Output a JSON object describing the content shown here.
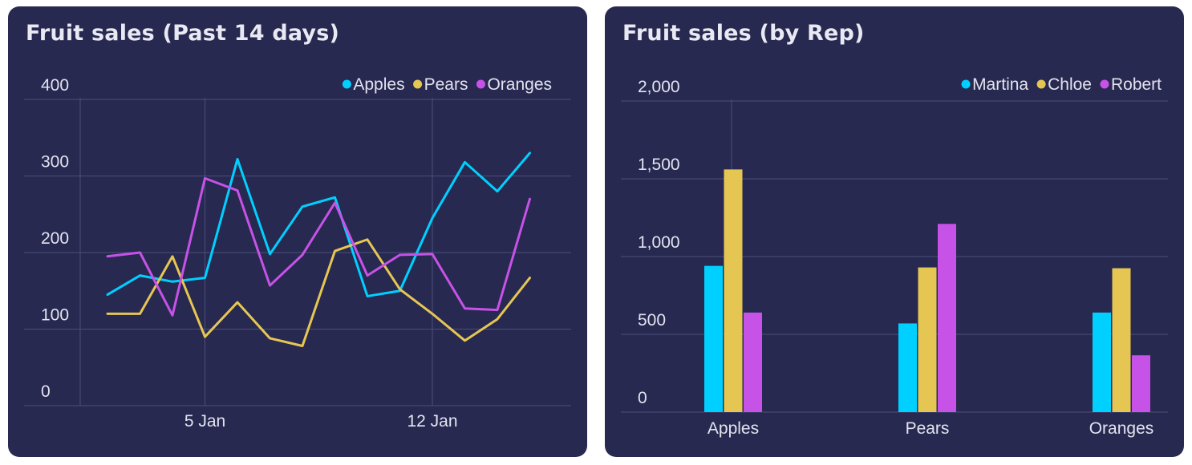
{
  "charts": [
    {
      "card_title": "Fruit sales (Past 14 days)",
      "chart_data": {
        "type": "line",
        "title": "Fruit sales (Past 14 days)",
        "x_tick_labels": [
          "5 Jan",
          "12 Jan"
        ],
        "x_start": "2 Jan",
        "x": [
          "2 Jan",
          "3 Jan",
          "4 Jan",
          "5 Jan",
          "6 Jan",
          "7 Jan",
          "8 Jan",
          "9 Jan",
          "10 Jan",
          "11 Jan",
          "12 Jan",
          "13 Jan",
          "14 Jan",
          "15 Jan"
        ],
        "y_ticks": [
          0,
          100,
          200,
          300,
          400
        ],
        "y_tick_labels": [
          "0",
          "100",
          "200",
          "300",
          "400"
        ],
        "ylim": [
          0,
          400
        ],
        "legend_position": "top-right",
        "grid": true,
        "series": [
          {
            "name": "Apples",
            "color": "#00d0ff",
            "values": [
              145,
              170,
              162,
              167,
              322,
              198,
              260,
              272,
              143,
              150,
              245,
              318,
              280,
              330
            ]
          },
          {
            "name": "Pears",
            "color": "#e6c653",
            "values": [
              120,
              120,
              195,
              90,
              135,
              88,
              78,
              202,
              217,
              152,
              120,
              85,
              113,
              167
            ]
          },
          {
            "name": "Oranges",
            "color": "#c752e7",
            "values": [
              195,
              200,
              118,
              297,
              281,
              157,
              197,
              265,
              170,
              197,
              198,
              127,
              125,
              270
            ]
          }
        ]
      }
    },
    {
      "card_title": "Fruit sales (by Rep)",
      "chart_data": {
        "type": "bar",
        "title": "Fruit sales (by Rep)",
        "categories": [
          "Apples",
          "Pears",
          "Oranges"
        ],
        "y_ticks": [
          0,
          500,
          1000,
          1500,
          2000
        ],
        "y_tick_labels": [
          "0",
          "500",
          "1,000",
          "1,500",
          "2,000"
        ],
        "ylim": [
          0,
          2000
        ],
        "legend_position": "top-right",
        "grid": true,
        "series": [
          {
            "name": "Martina",
            "color": "#00d0ff",
            "values": [
              940,
              570,
              640
            ]
          },
          {
            "name": "Chloe",
            "color": "#e6c653",
            "values": [
              1560,
              930,
              925
            ]
          },
          {
            "name": "Robert",
            "color": "#c752e7",
            "values": [
              640,
              1210,
              365
            ]
          }
        ]
      }
    }
  ]
}
